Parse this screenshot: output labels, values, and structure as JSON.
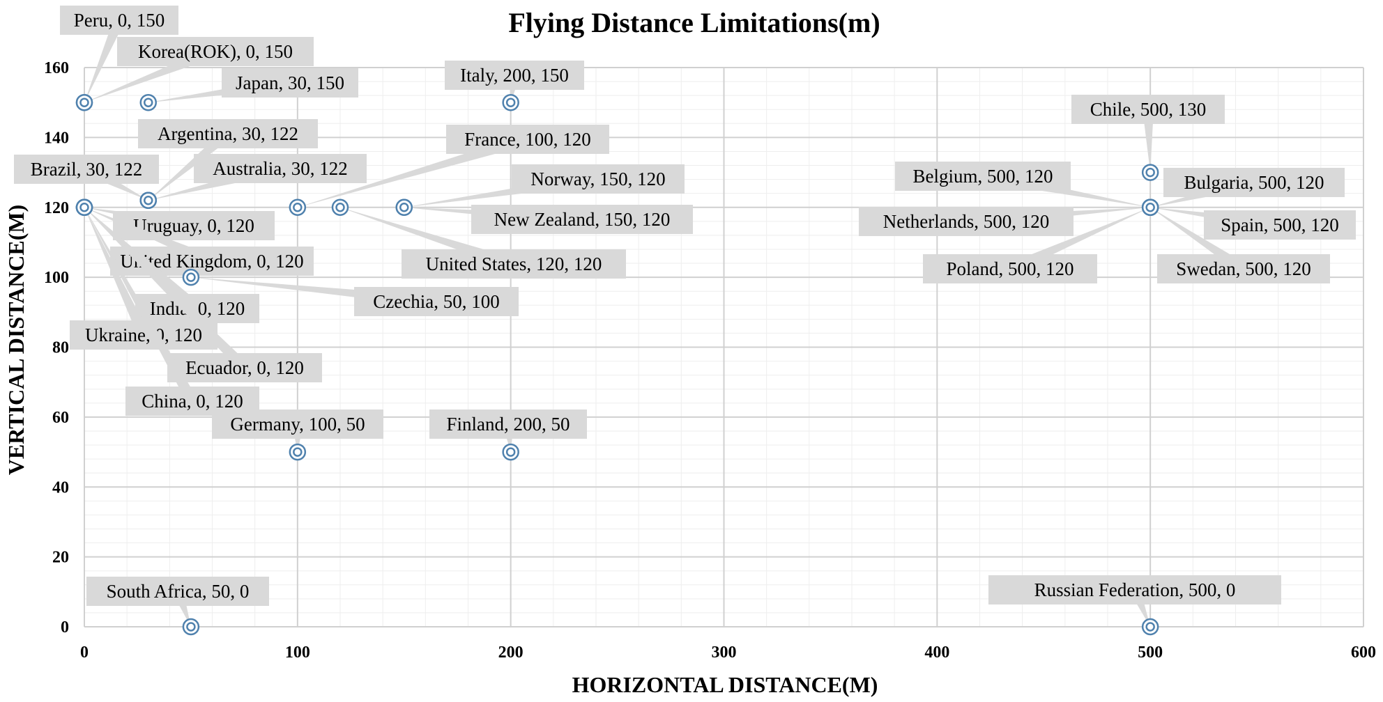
{
  "chart_data": {
    "type": "scatter",
    "title": "Flying Distance Limitations(m)",
    "xlabel": "HORIZONTAL DISTANCE(M)",
    "ylabel": "VERTICAL DISTANCE(M)",
    "xlim": [
      0,
      600
    ],
    "ylim": [
      0,
      160
    ],
    "x_ticks": [
      "0",
      "100",
      "200",
      "300",
      "400",
      "500",
      "600"
    ],
    "y_ticks": [
      "0",
      "20",
      "40",
      "60",
      "80",
      "100",
      "120",
      "140",
      "160"
    ],
    "grid": true,
    "marker_color": "#4f81ad",
    "callout_color": "#d9d9d9",
    "points": [
      {
        "x": 0,
        "y": 150,
        "label": "Peru, 0, 150"
      },
      {
        "x": 0,
        "y": 150,
        "label": "Korea(ROK), 0, 150"
      },
      {
        "x": 30,
        "y": 150,
        "label": "Japan, 30, 150"
      },
      {
        "x": 200,
        "y": 150,
        "label": "Italy, 200, 150"
      },
      {
        "x": 500,
        "y": 130,
        "label": "Chile, 500, 130"
      },
      {
        "x": 30,
        "y": 122,
        "label": "Argentina, 30, 122"
      },
      {
        "x": 30,
        "y": 122,
        "label": "Brazil, 30, 122"
      },
      {
        "x": 30,
        "y": 122,
        "label": "Australia, 30, 122"
      },
      {
        "x": 100,
        "y": 120,
        "label": "France, 100, 120"
      },
      {
        "x": 150,
        "y": 120,
        "label": "Norway, 150, 120"
      },
      {
        "x": 150,
        "y": 120,
        "label": "New Zealand, 150, 120"
      },
      {
        "x": 120,
        "y": 120,
        "label": "United States, 120, 120"
      },
      {
        "x": 500,
        "y": 120,
        "label": "Belgium, 500, 120"
      },
      {
        "x": 500,
        "y": 120,
        "label": "Bulgaria, 500, 120"
      },
      {
        "x": 500,
        "y": 120,
        "label": "Netherlands, 500, 120"
      },
      {
        "x": 500,
        "y": 120,
        "label": "Spain, 500, 120"
      },
      {
        "x": 500,
        "y": 120,
        "label": "Poland, 500, 120"
      },
      {
        "x": 500,
        "y": 120,
        "label": "Swedan, 500, 120"
      },
      {
        "x": 0,
        "y": 120,
        "label": "Uruguay, 0, 120"
      },
      {
        "x": 0,
        "y": 120,
        "label": "United Kingdom, 0, 120"
      },
      {
        "x": 50,
        "y": 100,
        "label": "Czechia, 50, 100"
      },
      {
        "x": 0,
        "y": 120,
        "label": "India, 0, 120"
      },
      {
        "x": 0,
        "y": 120,
        "label": "Ukraine, 0, 120"
      },
      {
        "x": 0,
        "y": 120,
        "label": "Ecuador, 0, 120"
      },
      {
        "x": 0,
        "y": 120,
        "label": "China, 0, 120"
      },
      {
        "x": 100,
        "y": 50,
        "label": "Germany, 100, 50"
      },
      {
        "x": 200,
        "y": 50,
        "label": "Finland, 200, 50"
      },
      {
        "x": 50,
        "y": 0,
        "label": "South Africa, 50, 0"
      },
      {
        "x": 500,
        "y": 0,
        "label": "Russian Federation, 500, 0"
      }
    ]
  }
}
